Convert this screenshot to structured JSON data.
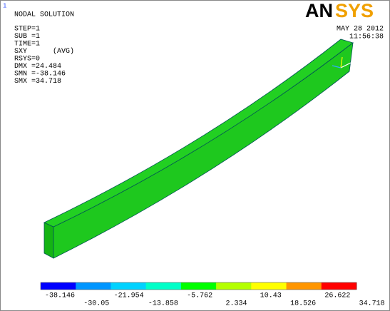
{
  "window_number": "1",
  "info": {
    "title": "NODAL SOLUTION",
    "lines": [
      "STEP=1",
      "SUB =1",
      "TIME=1",
      "SXY      (AVG)",
      "RSYS=0",
      "DMX =24.484",
      "SMN =-38.146",
      "SMX =34.718"
    ]
  },
  "logo": {
    "left": "AN",
    "right": "SYS"
  },
  "date": "MAY 28 2012",
  "time": "11:56:38",
  "legend": {
    "colors": [
      "#0000ff",
      "#0096ff",
      "#00d2ff",
      "#00ffc8",
      "#00ff00",
      "#b4ff00",
      "#ffff00",
      "#ff9600",
      "#ff0000"
    ],
    "labels": [
      "-38.146",
      "-30.05",
      "-21.954",
      "-13.858",
      "-5.762",
      "2.334",
      "10.43",
      "18.526",
      "26.622",
      "34.718"
    ]
  }
}
